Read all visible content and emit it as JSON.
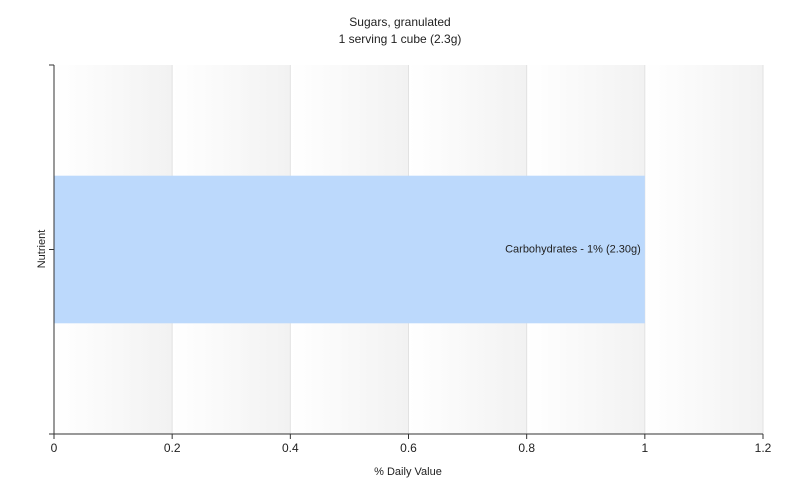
{
  "chart_data": {
    "type": "hbar",
    "title": "Sugars, granulated",
    "subtitle": "1 serving 1 cube (2.3g)",
    "x_label": "% Daily Value",
    "y_label": "Nutrient",
    "categories": [
      null
    ],
    "values": [
      1
    ],
    "value_labels": [
      "Carbohydrates - 1% (2.30g)"
    ],
    "color": "#bcd9fc",
    "xlim": [
      0,
      1.2
    ],
    "xticks": [
      0,
      0.2,
      0.4,
      0.6,
      0.8,
      1,
      1.2
    ],
    "grid": true
  }
}
